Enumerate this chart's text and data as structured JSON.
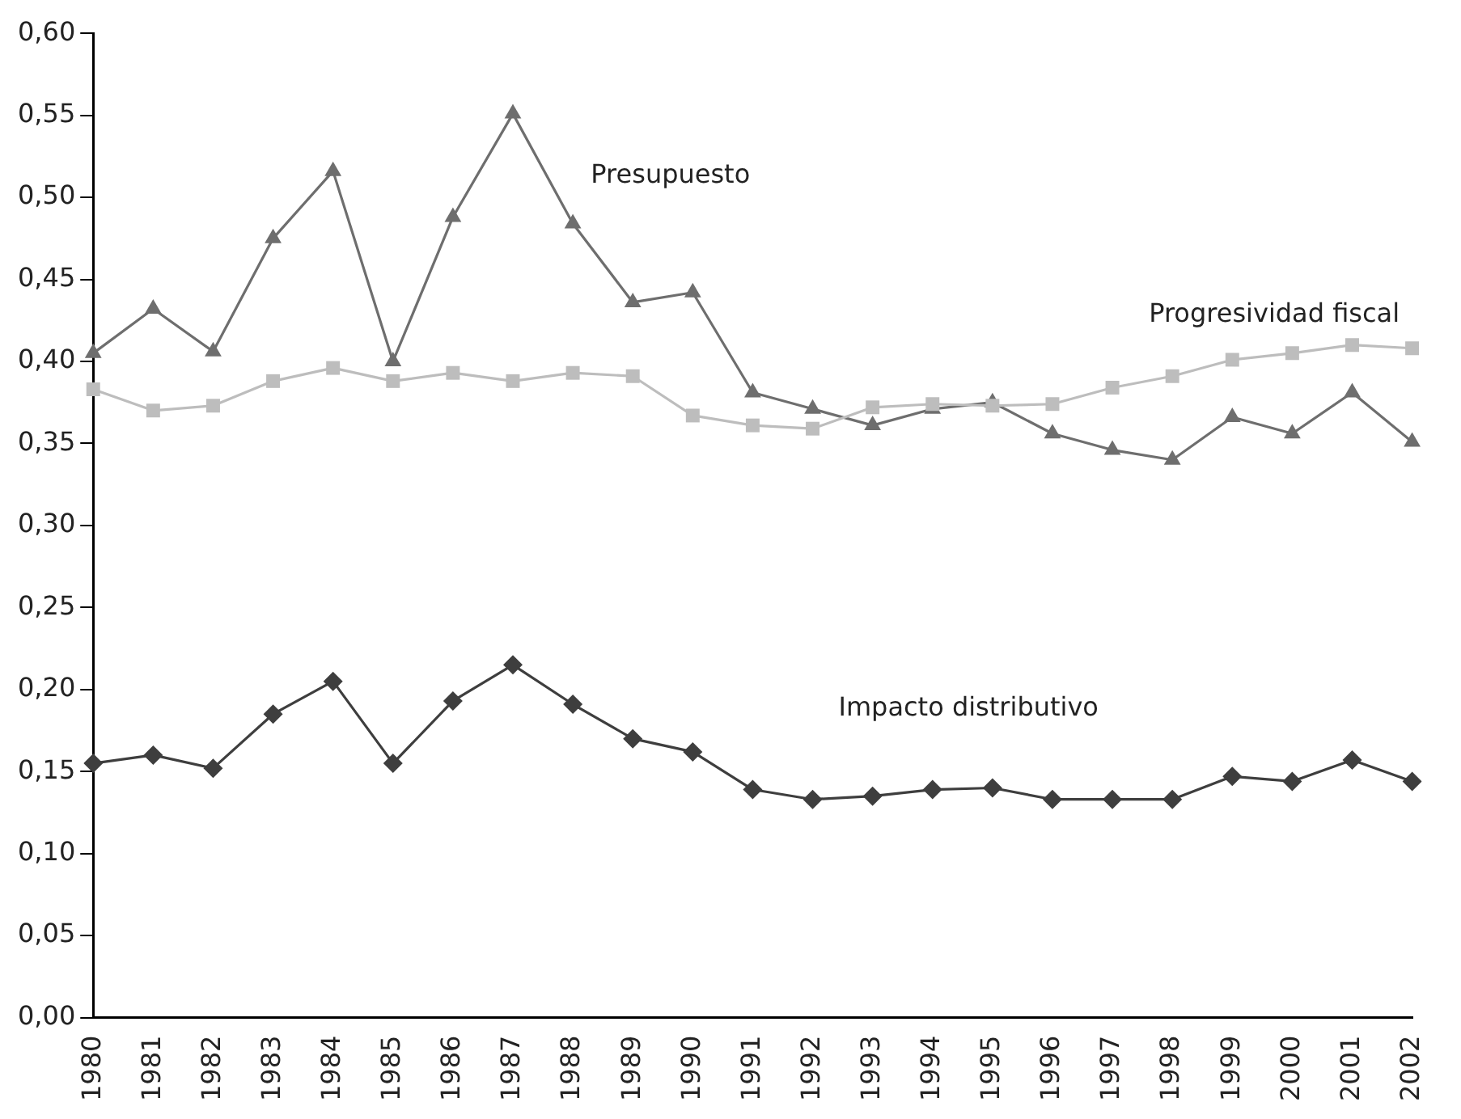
{
  "chart_data": {
    "type": "line",
    "categories": [
      "1980",
      "1981",
      "1982",
      "1983",
      "1984",
      "1985",
      "1986",
      "1987",
      "1988",
      "1989",
      "1990",
      "1991",
      "1992",
      "1993",
      "1994",
      "1995",
      "1996",
      "1997",
      "1998",
      "1999",
      "2000",
      "2001",
      "2002"
    ],
    "series": [
      {
        "name": "Presupuesto",
        "color": "#6e6e6e",
        "marker": "triangle",
        "values": [
          0.405,
          0.432,
          0.406,
          0.475,
          0.516,
          0.4,
          0.488,
          0.551,
          0.484,
          0.436,
          0.442,
          0.381,
          0.371,
          0.361,
          0.371,
          0.375,
          0.356,
          0.346,
          0.34,
          0.366,
          0.356,
          0.381,
          0.351
        ]
      },
      {
        "name": "Progresividad fiscal",
        "color": "#bdbdbd",
        "marker": "square",
        "values": [
          0.383,
          0.37,
          0.373,
          0.388,
          0.396,
          0.388,
          0.393,
          0.388,
          0.393,
          0.391,
          0.367,
          0.361,
          0.359,
          0.372,
          0.374,
          0.373,
          0.374,
          0.384,
          0.391,
          0.401,
          0.405,
          0.41,
          0.408
        ]
      },
      {
        "name": "Impacto distributivo",
        "color": "#3e3e3e",
        "marker": "diamond",
        "values": [
          0.155,
          0.16,
          0.152,
          0.185,
          0.205,
          0.155,
          0.193,
          0.215,
          0.191,
          0.17,
          0.162,
          0.139,
          0.133,
          0.135,
          0.139,
          0.14,
          0.133,
          0.133,
          0.133,
          0.147,
          0.144,
          0.157,
          0.144
        ]
      }
    ],
    "ylim": [
      0,
      0.6
    ],
    "yticks": [
      {
        "value": 0,
        "label": "0,00"
      },
      {
        "value": 0.05,
        "label": "0,05"
      },
      {
        "value": 0.1,
        "label": "0,10"
      },
      {
        "value": 0.15,
        "label": "0,15"
      },
      {
        "value": 0.2,
        "label": "0,20"
      },
      {
        "value": 0.25,
        "label": "0,25"
      },
      {
        "value": 0.3,
        "label": "0,30"
      },
      {
        "value": 0.35,
        "label": "0,35"
      },
      {
        "value": 0.4,
        "label": "0,40"
      },
      {
        "value": 0.45,
        "label": "0,45"
      },
      {
        "value": 0.5,
        "label": "0,50"
      },
      {
        "value": 0.55,
        "label": "0,55"
      },
      {
        "value": 0.6,
        "label": "0,60"
      }
    ],
    "grid": false,
    "legend": false,
    "line_style": "solid"
  }
}
